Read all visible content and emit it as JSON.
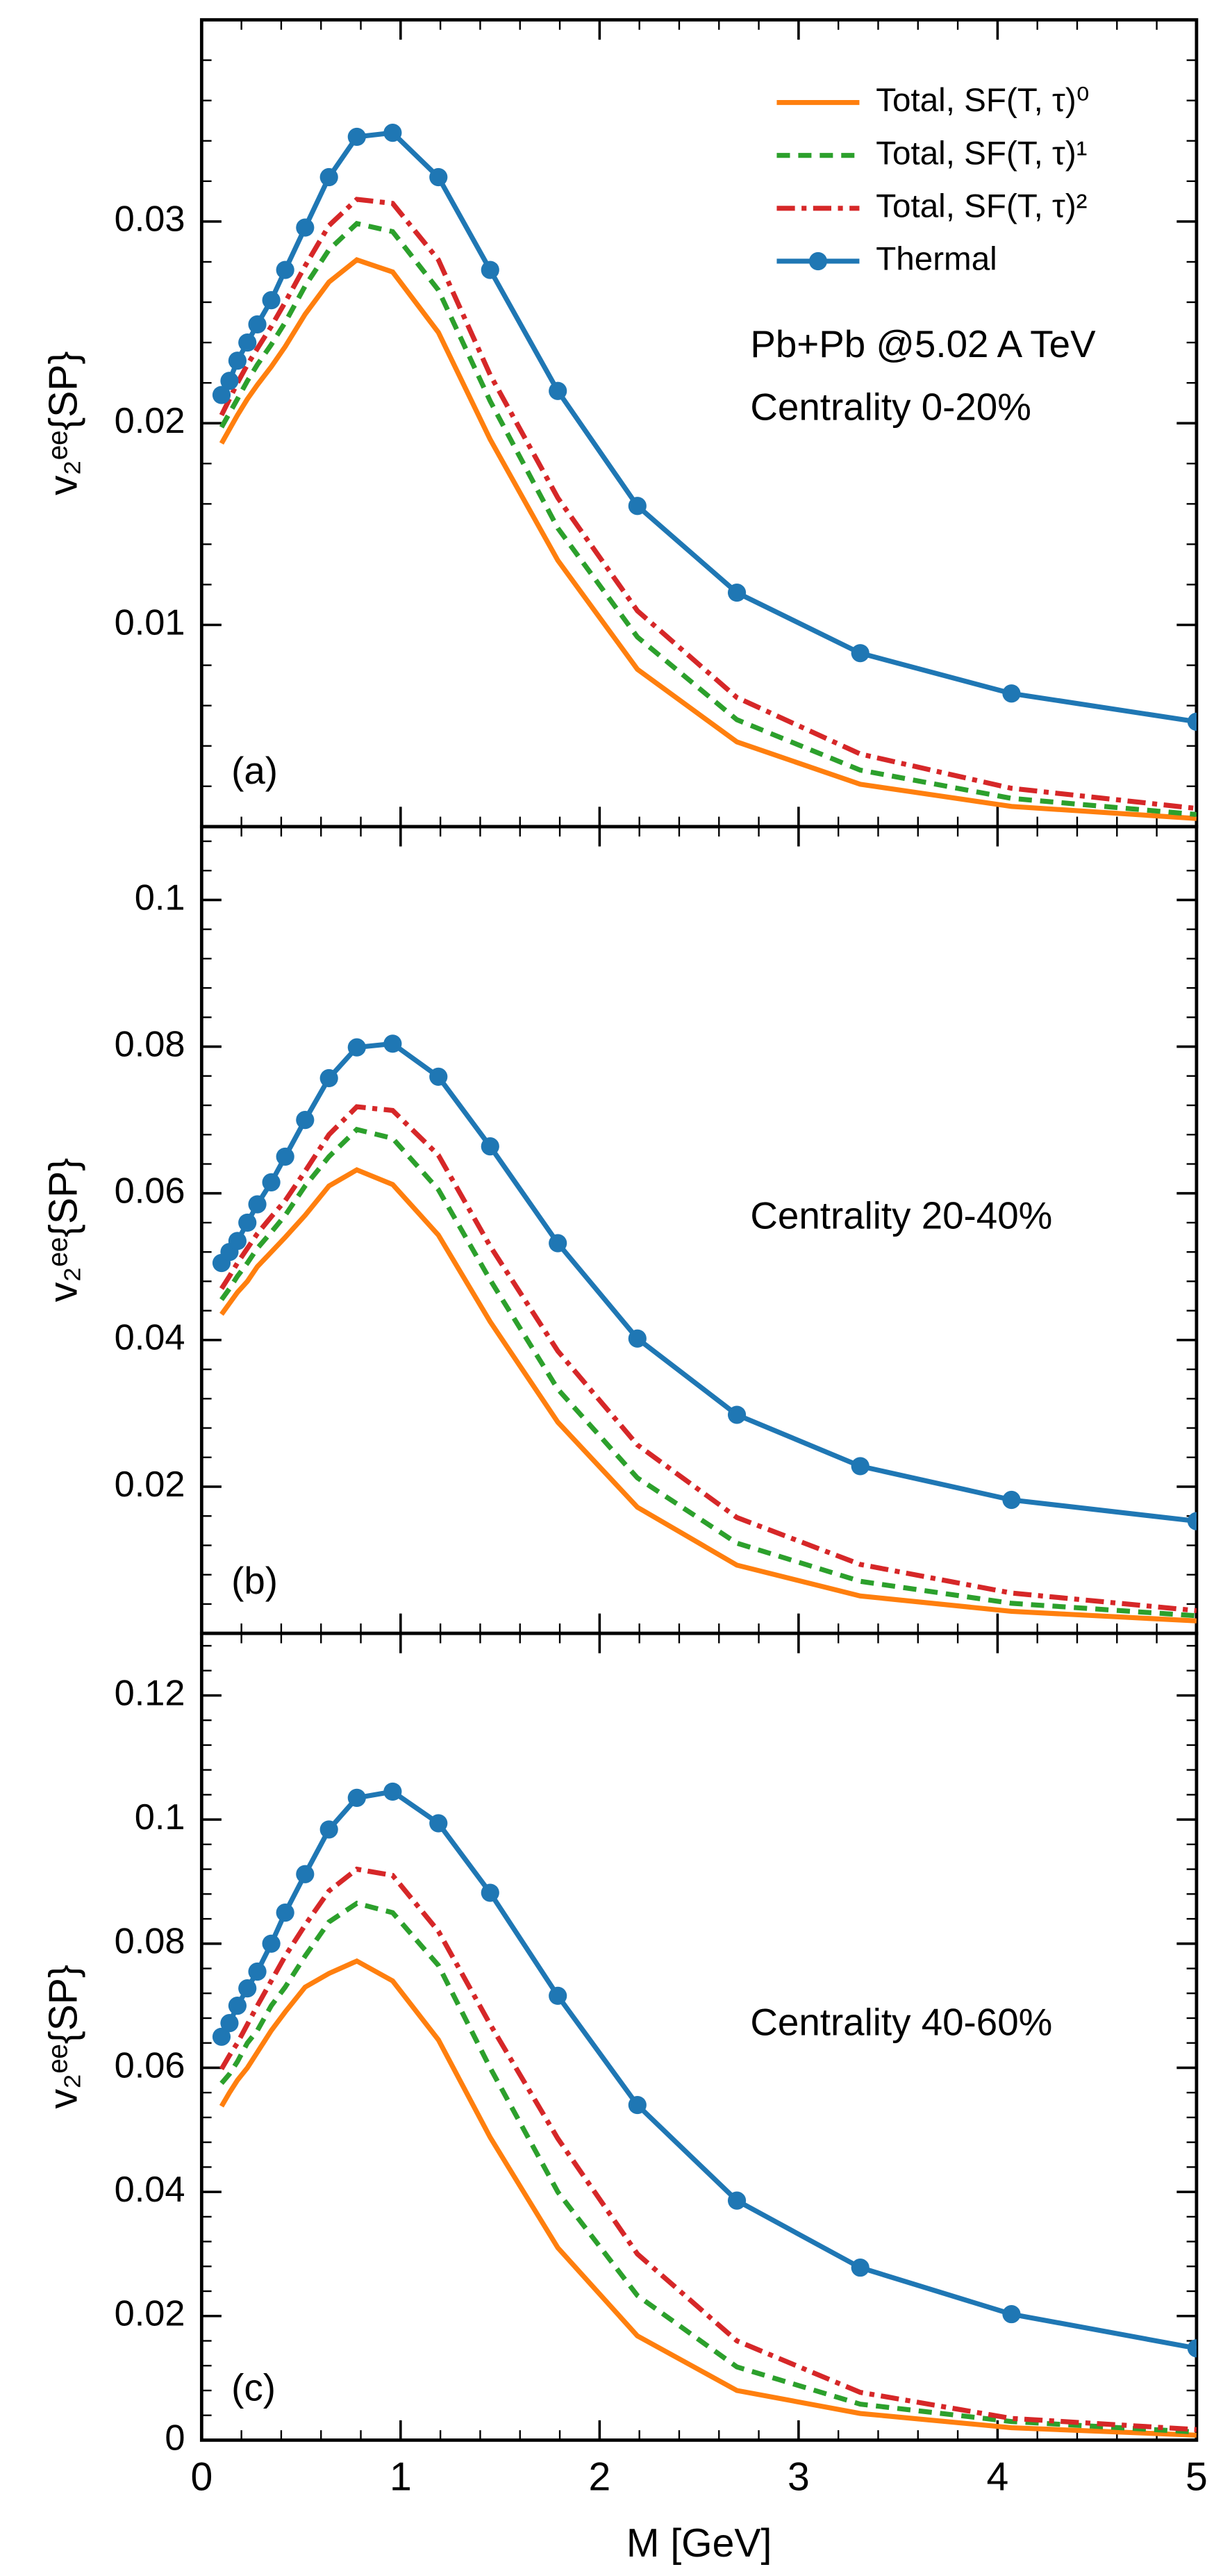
{
  "chart_data": [
    {
      "type": "line",
      "ylabel": "v₂ᵉᵉ{SP}",
      "annotations": [
        "Pb+Pb @5.02 A TeV",
        "Centrality 0-20%",
        "(a)"
      ],
      "legend": "upper right",
      "xlim": [
        0,
        5
      ],
      "xticks": [
        0,
        1,
        2,
        3,
        4,
        5
      ],
      "ylim": [
        0,
        0.04
      ],
      "yticks": [
        0,
        0.01,
        0.02,
        0.03
      ],
      "x": [
        0.1,
        0.14,
        0.18,
        0.23,
        0.28,
        0.35,
        0.42,
        0.52,
        0.64,
        0.78,
        0.96,
        1.19,
        1.45,
        1.79,
        2.19,
        2.69,
        3.31,
        4.07,
        5.0
      ],
      "series": [
        {
          "name": "Total, SF(T, τ)⁰",
          "color": "#ff7f0e",
          "linestyle": "solid",
          "values": [
            0.019,
            0.0197,
            0.0204,
            0.0212,
            0.0219,
            0.0228,
            0.0238,
            0.0254,
            0.027,
            0.0281,
            0.0275,
            0.0245,
            0.0192,
            0.0132,
            0.0078,
            0.0042,
            0.0021,
            0.001,
            0.0004
          ]
        },
        {
          "name": "Total, SF(T, τ)¹",
          "color": "#2ca02c",
          "linestyle": "dashed",
          "values": [
            0.0198,
            0.0205,
            0.0212,
            0.0221,
            0.0229,
            0.0239,
            0.025,
            0.0268,
            0.0286,
            0.0299,
            0.0295,
            0.0266,
            0.0211,
            0.0148,
            0.0094,
            0.0053,
            0.0028,
            0.0014,
            0.0006
          ]
        },
        {
          "name": "Total, SF(T, τ)²",
          "color": "#d62728",
          "linestyle": "dashdot",
          "values": [
            0.0204,
            0.0212,
            0.022,
            0.0229,
            0.0237,
            0.0248,
            0.026,
            0.0278,
            0.0298,
            0.0311,
            0.0309,
            0.0281,
            0.0224,
            0.0163,
            0.0107,
            0.0064,
            0.0036,
            0.0019,
            0.0009
          ]
        },
        {
          "name": "Thermal",
          "color": "#1f77b4",
          "linestyle": "solid",
          "marker": "o",
          "values": [
            0.0214,
            0.0221,
            0.0231,
            0.024,
            0.0249,
            0.0261,
            0.0276,
            0.0297,
            0.0322,
            0.0342,
            0.0344,
            0.0322,
            0.0276,
            0.0216,
            0.0159,
            0.0116,
            0.0086,
            0.0066,
            0.0052
          ]
        }
      ]
    },
    {
      "type": "line",
      "ylabel": "v₂ᵉᵉ{SP}",
      "annotations": [
        "Centrality 20-40%",
        "(b)"
      ],
      "xlim": [
        0,
        5
      ],
      "xticks": [
        0,
        1,
        2,
        3,
        4,
        5
      ],
      "ylim": [
        0,
        0.11
      ],
      "yticks": [
        0,
        0.02,
        0.04,
        0.06,
        0.08,
        0.1
      ],
      "x": [
        0.1,
        0.14,
        0.18,
        0.23,
        0.28,
        0.35,
        0.42,
        0.52,
        0.64,
        0.78,
        0.96,
        1.19,
        1.45,
        1.79,
        2.19,
        2.69,
        3.31,
        4.07,
        5.0
      ],
      "series": [
        {
          "color": "#ff7f0e",
          "linestyle": "solid",
          "values": [
            0.0435,
            0.045,
            0.0465,
            0.048,
            0.05,
            0.052,
            0.054,
            0.057,
            0.061,
            0.0632,
            0.0612,
            0.0543,
            0.0425,
            0.0288,
            0.0172,
            0.0093,
            0.0051,
            0.003,
            0.0017
          ]
        },
        {
          "color": "#2ca02c",
          "linestyle": "dashed",
          "values": [
            0.0455,
            0.047,
            0.0487,
            0.0505,
            0.0525,
            0.0547,
            0.057,
            0.061,
            0.065,
            0.0687,
            0.0675,
            0.0605,
            0.0482,
            0.0333,
            0.0212,
            0.0123,
            0.0071,
            0.0041,
            0.0024
          ]
        },
        {
          "color": "#d62728",
          "linestyle": "dashdot",
          "values": [
            0.047,
            0.0487,
            0.0505,
            0.0525,
            0.0545,
            0.0568,
            0.059,
            0.063,
            0.068,
            0.0718,
            0.0713,
            0.0652,
            0.0528,
            0.0385,
            0.0257,
            0.0158,
            0.0094,
            0.0055,
            0.0031
          ]
        },
        {
          "color": "#1f77b4",
          "linestyle": "solid",
          "marker": "o",
          "values": [
            0.0505,
            0.052,
            0.0535,
            0.056,
            0.0585,
            0.0615,
            0.065,
            0.07,
            0.0757,
            0.0799,
            0.0804,
            0.0759,
            0.0664,
            0.0532,
            0.0402,
            0.0298,
            0.0228,
            0.0182,
            0.0153
          ]
        }
      ]
    },
    {
      "type": "line",
      "ylabel": "v₂ᵉᵉ{SP}",
      "xlabel": "M [GeV]",
      "annotations": [
        "Centrality 40-60%",
        "(c)"
      ],
      "xlim": [
        0,
        5
      ],
      "xticks": [
        0,
        1,
        2,
        3,
        4,
        5
      ],
      "ylim": [
        0,
        0.13
      ],
      "yticks": [
        0,
        0.02,
        0.04,
        0.06,
        0.08,
        0.1,
        0.12
      ],
      "x": [
        0.1,
        0.14,
        0.18,
        0.23,
        0.28,
        0.35,
        0.42,
        0.52,
        0.64,
        0.78,
        0.96,
        1.19,
        1.45,
        1.79,
        2.19,
        2.69,
        3.31,
        4.07,
        5.0
      ],
      "series": [
        {
          "color": "#ff7f0e",
          "linestyle": "solid",
          "values": [
            0.0538,
            0.056,
            0.058,
            0.06,
            0.0625,
            0.066,
            0.069,
            0.073,
            0.0752,
            0.0772,
            0.074,
            0.0645,
            0.0488,
            0.031,
            0.0168,
            0.008,
            0.0043,
            0.002,
            0.0008
          ]
        },
        {
          "color": "#2ca02c",
          "linestyle": "dashed",
          "values": [
            0.0575,
            0.059,
            0.061,
            0.064,
            0.066,
            0.07,
            0.073,
            0.078,
            0.0835,
            0.0865,
            0.085,
            0.0765,
            0.06,
            0.04,
            0.0233,
            0.0118,
            0.0058,
            0.003,
            0.0013
          ]
        },
        {
          "color": "#d62728",
          "linestyle": "dashdot",
          "values": [
            0.0598,
            0.062,
            0.064,
            0.067,
            0.07,
            0.074,
            0.078,
            0.083,
            0.0885,
            0.092,
            0.091,
            0.082,
            0.067,
            0.0486,
            0.03,
            0.016,
            0.0077,
            0.0035,
            0.0017
          ]
        },
        {
          "color": "#1f77b4",
          "linestyle": "solid",
          "marker": "o",
          "values": [
            0.065,
            0.0672,
            0.07,
            0.0728,
            0.0755,
            0.08,
            0.085,
            0.0912,
            0.0984,
            0.1035,
            0.1045,
            0.0994,
            0.0882,
            0.0716,
            0.054,
            0.0386,
            0.0278,
            0.0203,
            0.0148
          ]
        }
      ]
    }
  ]
}
